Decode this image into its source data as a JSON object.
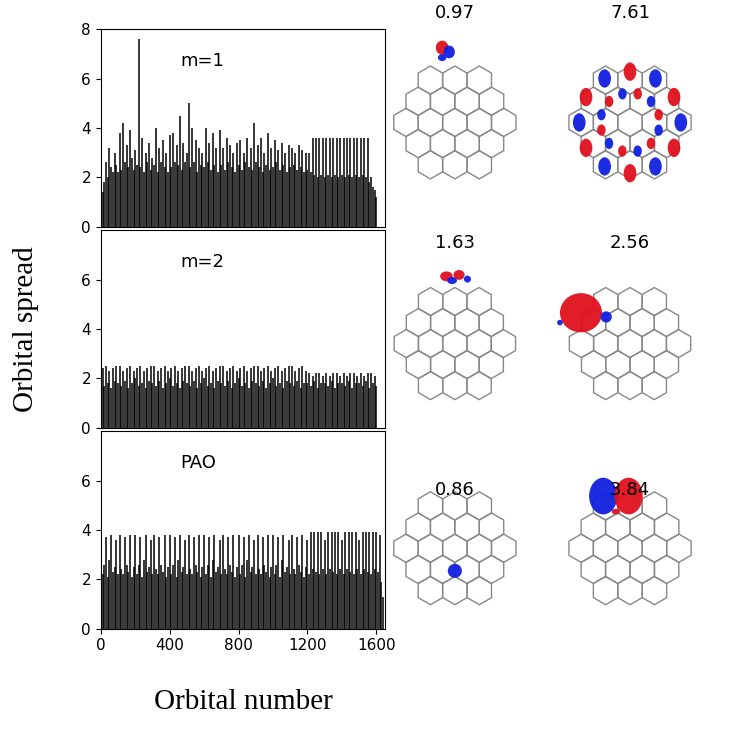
{
  "figure": {
    "xlabel": "Orbital number",
    "ylabel": "Orbital spread"
  },
  "chart_data": [
    {
      "type": "bar",
      "title": "m=1",
      "color": "#000000",
      "xlim": [
        0,
        1650
      ],
      "ylim": [
        0,
        8
      ],
      "yticks": [
        0,
        2,
        4,
        6,
        8
      ],
      "tick_labels": "y",
      "x": [
        0,
        10,
        20,
        30,
        40,
        50,
        60,
        70,
        80,
        90,
        100,
        110,
        120,
        130,
        140,
        150,
        160,
        170,
        180,
        190,
        200,
        210,
        220,
        230,
        240,
        250,
        260,
        270,
        280,
        290,
        300,
        310,
        320,
        330,
        340,
        350,
        360,
        370,
        380,
        390,
        400,
        410,
        420,
        430,
        440,
        450,
        460,
        470,
        480,
        490,
        500,
        510,
        520,
        530,
        540,
        550,
        560,
        570,
        580,
        590,
        600,
        610,
        620,
        630,
        640,
        650,
        660,
        670,
        680,
        690,
        700,
        710,
        720,
        730,
        740,
        750,
        760,
        770,
        780,
        790,
        800,
        810,
        820,
        830,
        840,
        850,
        860,
        870,
        880,
        890,
        900,
        910,
        920,
        930,
        940,
        950,
        960,
        970,
        980,
        990,
        1000,
        1010,
        1020,
        1030,
        1040,
        1050,
        1060,
        1070,
        1080,
        1090,
        1100,
        1110,
        1120,
        1130,
        1140,
        1150,
        1160,
        1170,
        1180,
        1190,
        1200,
        1210,
        1220,
        1230,
        1240,
        1250,
        1260,
        1270,
        1280,
        1290,
        1300,
        1310,
        1320,
        1330,
        1340,
        1350,
        1360,
        1370,
        1380,
        1390,
        1400,
        1410,
        1420,
        1430,
        1440,
        1450,
        1460,
        1470,
        1480,
        1490,
        1500,
        1510,
        1520,
        1530,
        1540,
        1550,
        1560,
        1570,
        1580,
        1590,
        1600
      ],
      "values": [
        1.5,
        1.4,
        1.8,
        2.6,
        2.0,
        3.2,
        2.4,
        2.2,
        3.0,
        2.5,
        2.2,
        3.8,
        2.3,
        4.2,
        2.6,
        3.3,
        2.4,
        3.9,
        2.8,
        2.3,
        3.1,
        2.5,
        7.6,
        2.4,
        3.6,
        2.2,
        3.0,
        2.6,
        3.4,
        2.3,
        2.8,
        2.5,
        4.0,
        2.2,
        3.2,
        2.6,
        3.5,
        2.4,
        3.0,
        2.2,
        3.7,
        2.4,
        3.8,
        2.6,
        3.3,
        2.5,
        4.5,
        2.3,
        3.4,
        2.6,
        3.0,
        5.0,
        2.4,
        4.0,
        2.6,
        3.5,
        2.2,
        3.2,
        2.5,
        3.0,
        2.4,
        4.0,
        2.6,
        3.4,
        2.3,
        3.8,
        2.5,
        3.2,
        2.2,
        3.9,
        2.5,
        3.2,
        2.3,
        3.6,
        2.6,
        3.3,
        2.4,
        3.0,
        2.2,
        3.4,
        2.5,
        3.5,
        2.3,
        3.0,
        2.6,
        3.6,
        2.4,
        3.2,
        2.3,
        4.2,
        2.6,
        3.3,
        2.4,
        3.6,
        2.2,
        3.0,
        2.5,
        3.8,
        2.3,
        3.2,
        2.4,
        3.5,
        2.6,
        3.1,
        2.3,
        3.4,
        2.5,
        3.0,
        2.2,
        3.3,
        2.4,
        3.2,
        2.5,
        3.0,
        2.3,
        3.3,
        2.4,
        3.1,
        2.2,
        3.0,
        2.3,
        3.0,
        2.2,
        3.6,
        2.1,
        3.6,
        2.0,
        3.6,
        2.1,
        3.6,
        2.0,
        3.6,
        2.1,
        3.6,
        2.0,
        3.6,
        2.1,
        3.6,
        2.0,
        3.6,
        2.1,
        3.6,
        2.0,
        3.6,
        2.1,
        3.6,
        2.0,
        3.6,
        2.1,
        3.6,
        2.0,
        3.6,
        2.1,
        3.6,
        2.0,
        3.6,
        1.8,
        2.0,
        1.6,
        1.5,
        1.2
      ]
    },
    {
      "type": "bar",
      "title": "m=2",
      "color": "#000000",
      "xlim": [
        0,
        1650
      ],
      "ylim": [
        0,
        8
      ],
      "yticks": [
        0,
        2,
        4,
        6
      ],
      "tick_labels": "y",
      "x": [
        0,
        10,
        20,
        30,
        40,
        50,
        60,
        70,
        80,
        90,
        100,
        110,
        120,
        130,
        140,
        150,
        160,
        170,
        180,
        190,
        200,
        210,
        220,
        230,
        240,
        250,
        260,
        270,
        280,
        290,
        300,
        310,
        320,
        330,
        340,
        350,
        360,
        370,
        380,
        390,
        400,
        410,
        420,
        430,
        440,
        450,
        460,
        470,
        480,
        490,
        500,
        510,
        520,
        530,
        540,
        550,
        560,
        570,
        580,
        590,
        600,
        610,
        620,
        630,
        640,
        650,
        660,
        670,
        680,
        690,
        700,
        710,
        720,
        730,
        740,
        750,
        760,
        770,
        780,
        790,
        800,
        810,
        820,
        830,
        840,
        850,
        860,
        870,
        880,
        890,
        900,
        910,
        920,
        930,
        940,
        950,
        960,
        970,
        980,
        990,
        1000,
        1010,
        1020,
        1030,
        1040,
        1050,
        1060,
        1070,
        1080,
        1090,
        1100,
        1110,
        1120,
        1130,
        1140,
        1150,
        1160,
        1170,
        1180,
        1190,
        1200,
        1210,
        1220,
        1230,
        1240,
        1250,
        1260,
        1270,
        1280,
        1290,
        1300,
        1310,
        1320,
        1330,
        1340,
        1350,
        1360,
        1370,
        1380,
        1390,
        1400,
        1410,
        1420,
        1430,
        1440,
        1450,
        1460,
        1470,
        1480,
        1490,
        1500,
        1510,
        1520,
        1530,
        1540,
        1550,
        1560,
        1570,
        1580,
        1590,
        1600
      ],
      "values": [
        2.0,
        2.4,
        1.7,
        2.5,
        1.8,
        2.3,
        1.6,
        2.4,
        1.9,
        2.5,
        1.8,
        2.5,
        1.7,
        2.3,
        1.9,
        2.4,
        1.6,
        2.5,
        1.8,
        2.3,
        2.0,
        2.4,
        1.7,
        2.5,
        1.8,
        2.3,
        1.6,
        2.4,
        1.9,
        2.5,
        1.8,
        2.5,
        1.7,
        2.3,
        1.9,
        2.4,
        1.6,
        2.5,
        1.8,
        2.3,
        2.0,
        2.4,
        1.7,
        2.5,
        1.8,
        2.3,
        1.6,
        2.4,
        1.9,
        2.5,
        1.8,
        2.5,
        1.7,
        2.3,
        1.9,
        2.4,
        1.6,
        2.5,
        1.8,
        2.3,
        2.0,
        2.4,
        1.7,
        2.5,
        1.8,
        2.3,
        1.6,
        2.4,
        1.9,
        2.5,
        1.8,
        2.5,
        1.7,
        2.3,
        1.9,
        2.4,
        1.6,
        2.5,
        1.8,
        2.3,
        2.0,
        2.4,
        1.7,
        2.5,
        1.8,
        2.3,
        1.6,
        2.4,
        1.9,
        2.5,
        1.8,
        2.5,
        1.7,
        2.3,
        1.9,
        2.4,
        1.6,
        2.5,
        1.8,
        2.3,
        2.0,
        2.4,
        1.7,
        2.5,
        1.8,
        2.3,
        1.6,
        2.4,
        1.9,
        2.5,
        1.8,
        2.5,
        1.7,
        2.3,
        1.9,
        2.4,
        1.6,
        2.5,
        1.8,
        2.3,
        1.8,
        2.2,
        1.7,
        2.1,
        1.9,
        2.2,
        1.6,
        2.2,
        1.8,
        2.1,
        1.8,
        2.2,
        1.7,
        2.1,
        1.9,
        2.2,
        1.6,
        2.2,
        1.8,
        2.1,
        1.8,
        2.2,
        1.7,
        2.1,
        1.9,
        2.2,
        1.6,
        2.2,
        1.8,
        2.1,
        1.8,
        2.2,
        1.7,
        2.1,
        1.9,
        2.2,
        1.6,
        2.2,
        1.8,
        2.1,
        1.7
      ]
    },
    {
      "type": "bar",
      "title": "PAO",
      "color": "#000000",
      "xlim": [
        0,
        1650
      ],
      "ylim": [
        0,
        8
      ],
      "yticks": [
        0,
        2,
        4,
        6
      ],
      "xticks": [
        0,
        400,
        800,
        1200,
        1600
      ],
      "x": [
        0,
        10,
        20,
        30,
        40,
        50,
        60,
        70,
        80,
        90,
        100,
        110,
        120,
        130,
        140,
        150,
        160,
        170,
        180,
        190,
        200,
        210,
        220,
        230,
        240,
        250,
        260,
        270,
        280,
        290,
        300,
        310,
        320,
        330,
        340,
        350,
        360,
        370,
        380,
        390,
        400,
        410,
        420,
        430,
        440,
        450,
        460,
        470,
        480,
        490,
        500,
        510,
        520,
        530,
        540,
        550,
        560,
        570,
        580,
        590,
        600,
        610,
        620,
        630,
        640,
        650,
        660,
        670,
        680,
        690,
        700,
        710,
        720,
        730,
        740,
        750,
        760,
        770,
        780,
        790,
        800,
        810,
        820,
        830,
        840,
        850,
        860,
        870,
        880,
        890,
        900,
        910,
        920,
        930,
        940,
        950,
        960,
        970,
        980,
        990,
        1000,
        1010,
        1020,
        1030,
        1040,
        1050,
        1060,
        1070,
        1080,
        1090,
        1100,
        1110,
        1120,
        1130,
        1140,
        1150,
        1160,
        1170,
        1180,
        1190,
        1200,
        1210,
        1220,
        1230,
        1240,
        1250,
        1260,
        1270,
        1280,
        1290,
        1300,
        1310,
        1320,
        1330,
        1340,
        1350,
        1360,
        1370,
        1380,
        1390,
        1400,
        1410,
        1420,
        1430,
        1440,
        1450,
        1460,
        1470,
        1480,
        1490,
        1500,
        1510,
        1520,
        1530,
        1540,
        1550,
        1560,
        1570,
        1580,
        1590,
        1600,
        1610,
        1620,
        1630,
        1640
      ],
      "values": [
        3.8,
        2.2,
        2.6,
        3.7,
        2.1,
        2.8,
        3.8,
        2.3,
        2.5,
        3.6,
        2.2,
        3.8,
        2.4,
        2.2,
        3.7,
        2.6,
        2.3,
        3.8,
        2.1,
        2.5,
        3.8,
        2.2,
        2.6,
        3.7,
        2.1,
        2.8,
        3.8,
        2.3,
        2.5,
        3.6,
        2.2,
        3.8,
        2.4,
        2.2,
        3.7,
        2.6,
        2.3,
        3.8,
        2.1,
        2.5,
        3.8,
        2.2,
        2.6,
        3.7,
        2.1,
        2.8,
        3.8,
        2.3,
        2.5,
        3.6,
        2.2,
        3.8,
        2.4,
        2.2,
        3.7,
        2.6,
        2.3,
        3.8,
        2.1,
        2.5,
        3.8,
        2.2,
        2.6,
        3.7,
        2.1,
        2.8,
        3.8,
        2.3,
        2.5,
        3.6,
        2.2,
        3.8,
        2.4,
        2.2,
        3.7,
        2.6,
        2.3,
        3.8,
        2.1,
        2.5,
        3.8,
        2.2,
        2.6,
        3.7,
        2.1,
        2.8,
        3.8,
        2.3,
        2.5,
        3.6,
        2.2,
        3.8,
        2.4,
        2.2,
        3.7,
        2.6,
        2.3,
        3.8,
        2.1,
        2.5,
        3.8,
        2.2,
        2.6,
        3.7,
        2.1,
        2.8,
        3.8,
        2.3,
        2.5,
        3.6,
        2.2,
        3.8,
        2.4,
        2.2,
        3.7,
        2.6,
        2.3,
        3.8,
        2.1,
        2.5,
        3.6,
        2.2,
        3.9,
        2.4,
        3.9,
        2.3,
        3.9,
        2.2,
        3.9,
        2.4,
        3.6,
        2.2,
        3.9,
        2.4,
        3.9,
        2.3,
        3.9,
        2.2,
        3.9,
        2.4,
        3.6,
        2.2,
        3.9,
        2.4,
        3.9,
        2.3,
        3.9,
        2.2,
        3.9,
        2.4,
        3.6,
        2.2,
        3.9,
        2.4,
        3.9,
        2.3,
        3.9,
        2.2,
        3.9,
        2.4,
        3.9,
        2.3,
        3.8,
        1.9,
        1.3
      ]
    }
  ],
  "orbital_spreads": [
    [
      0.97,
      7.61
    ],
    [
      1.63,
      2.56
    ],
    [
      0.86,
      3.84
    ]
  ]
}
